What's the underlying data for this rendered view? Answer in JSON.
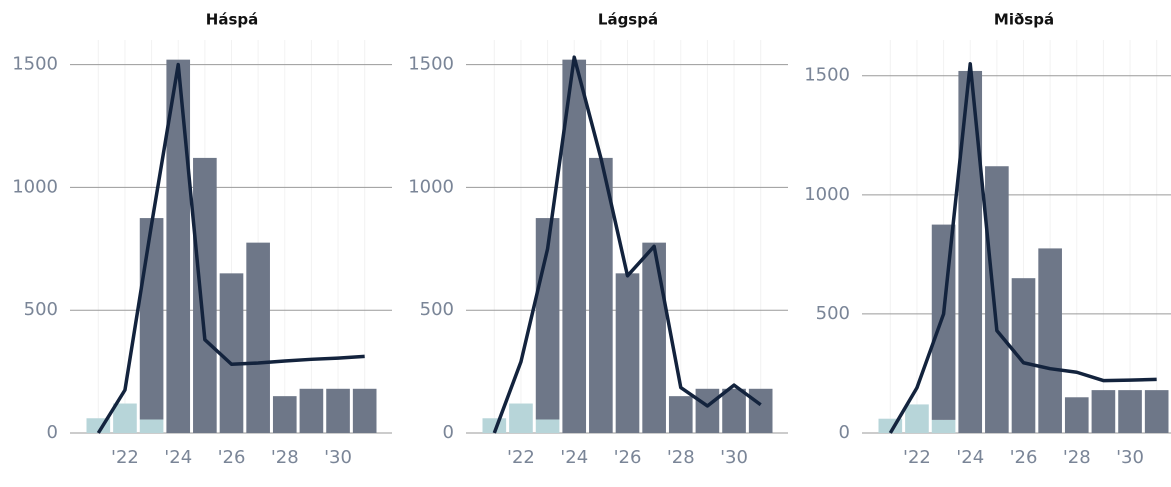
{
  "chart_data": [
    {
      "type": "bar",
      "title": "Háspá",
      "x": [
        2021,
        2022,
        2023,
        2024,
        2025,
        2026,
        2027,
        2028,
        2029,
        2030,
        2031
      ],
      "series": [
        {
          "type": "bar",
          "color": "#b7d5d9",
          "values": [
            60,
            120,
            55,
            0,
            0,
            0,
            0,
            0,
            0,
            0,
            0
          ]
        },
        {
          "type": "bar",
          "color": "#6e7788",
          "values": [
            0,
            0,
            820,
            1520,
            1120,
            650,
            775,
            150,
            180,
            180,
            180
          ]
        },
        {
          "type": "line",
          "color": "#13233d",
          "values": [
            0,
            175,
            850,
            1500,
            380,
            280,
            285,
            293,
            300,
            305,
            312
          ]
        }
      ],
      "xlim": [
        2020.5,
        2031.5
      ],
      "xticks": [
        {
          "value": 2022,
          "label": "'22"
        },
        {
          "value": 2024,
          "label": "'24"
        },
        {
          "value": 2026,
          "label": "'26"
        },
        {
          "value": 2028,
          "label": "'28"
        },
        {
          "value": 2030,
          "label": "'30"
        }
      ],
      "ylim": [
        0,
        1600
      ],
      "yticks": [
        0,
        500,
        1000,
        1500
      ],
      "grid": true
    },
    {
      "type": "bar",
      "title": "Lágspá",
      "x": [
        2021,
        2022,
        2023,
        2024,
        2025,
        2026,
        2027,
        2028,
        2029,
        2030,
        2031
      ],
      "series": [
        {
          "type": "bar",
          "color": "#b7d5d9",
          "values": [
            60,
            120,
            55,
            0,
            0,
            0,
            0,
            0,
            0,
            0,
            0
          ]
        },
        {
          "type": "bar",
          "color": "#6e7788",
          "values": [
            0,
            0,
            820,
            1520,
            1120,
            650,
            775,
            150,
            180,
            180,
            180
          ]
        },
        {
          "type": "line",
          "color": "#13233d",
          "values": [
            0,
            290,
            750,
            1530,
            1120,
            640,
            760,
            185,
            110,
            195,
            115
          ]
        }
      ],
      "xlim": [
        2020.5,
        2031.5
      ],
      "xticks": [
        {
          "value": 2022,
          "label": "'22"
        },
        {
          "value": 2024,
          "label": "'24"
        },
        {
          "value": 2026,
          "label": "'26"
        },
        {
          "value": 2028,
          "label": "'28"
        },
        {
          "value": 2030,
          "label": "'30"
        }
      ],
      "ylim": [
        0,
        1600
      ],
      "yticks": [
        0,
        500,
        1000,
        1500
      ],
      "grid": true
    },
    {
      "type": "bar",
      "title": "Miðspá",
      "x": [
        2021,
        2022,
        2023,
        2024,
        2025,
        2026,
        2027,
        2028,
        2029,
        2030,
        2031
      ],
      "series": [
        {
          "type": "bar",
          "color": "#b7d5d9",
          "values": [
            60,
            120,
            55,
            0,
            0,
            0,
            0,
            0,
            0,
            0,
            0
          ]
        },
        {
          "type": "bar",
          "color": "#6e7788",
          "values": [
            0,
            0,
            820,
            1520,
            1120,
            650,
            775,
            150,
            180,
            180,
            180
          ]
        },
        {
          "type": "line",
          "color": "#13233d",
          "values": [
            0,
            190,
            500,
            1550,
            430,
            295,
            270,
            255,
            220,
            222,
            225
          ]
        }
      ],
      "xlim": [
        2020.5,
        2031.5
      ],
      "xticks": [
        {
          "value": 2022,
          "label": "'22"
        },
        {
          "value": 2024,
          "label": "'24"
        },
        {
          "value": 2026,
          "label": "'26"
        },
        {
          "value": 2028,
          "label": "'28"
        },
        {
          "value": 2030,
          "label": "'30"
        }
      ],
      "ylim": [
        0,
        1650
      ],
      "yticks": [
        0,
        500,
        1000,
        1500
      ],
      "grid": true
    }
  ]
}
